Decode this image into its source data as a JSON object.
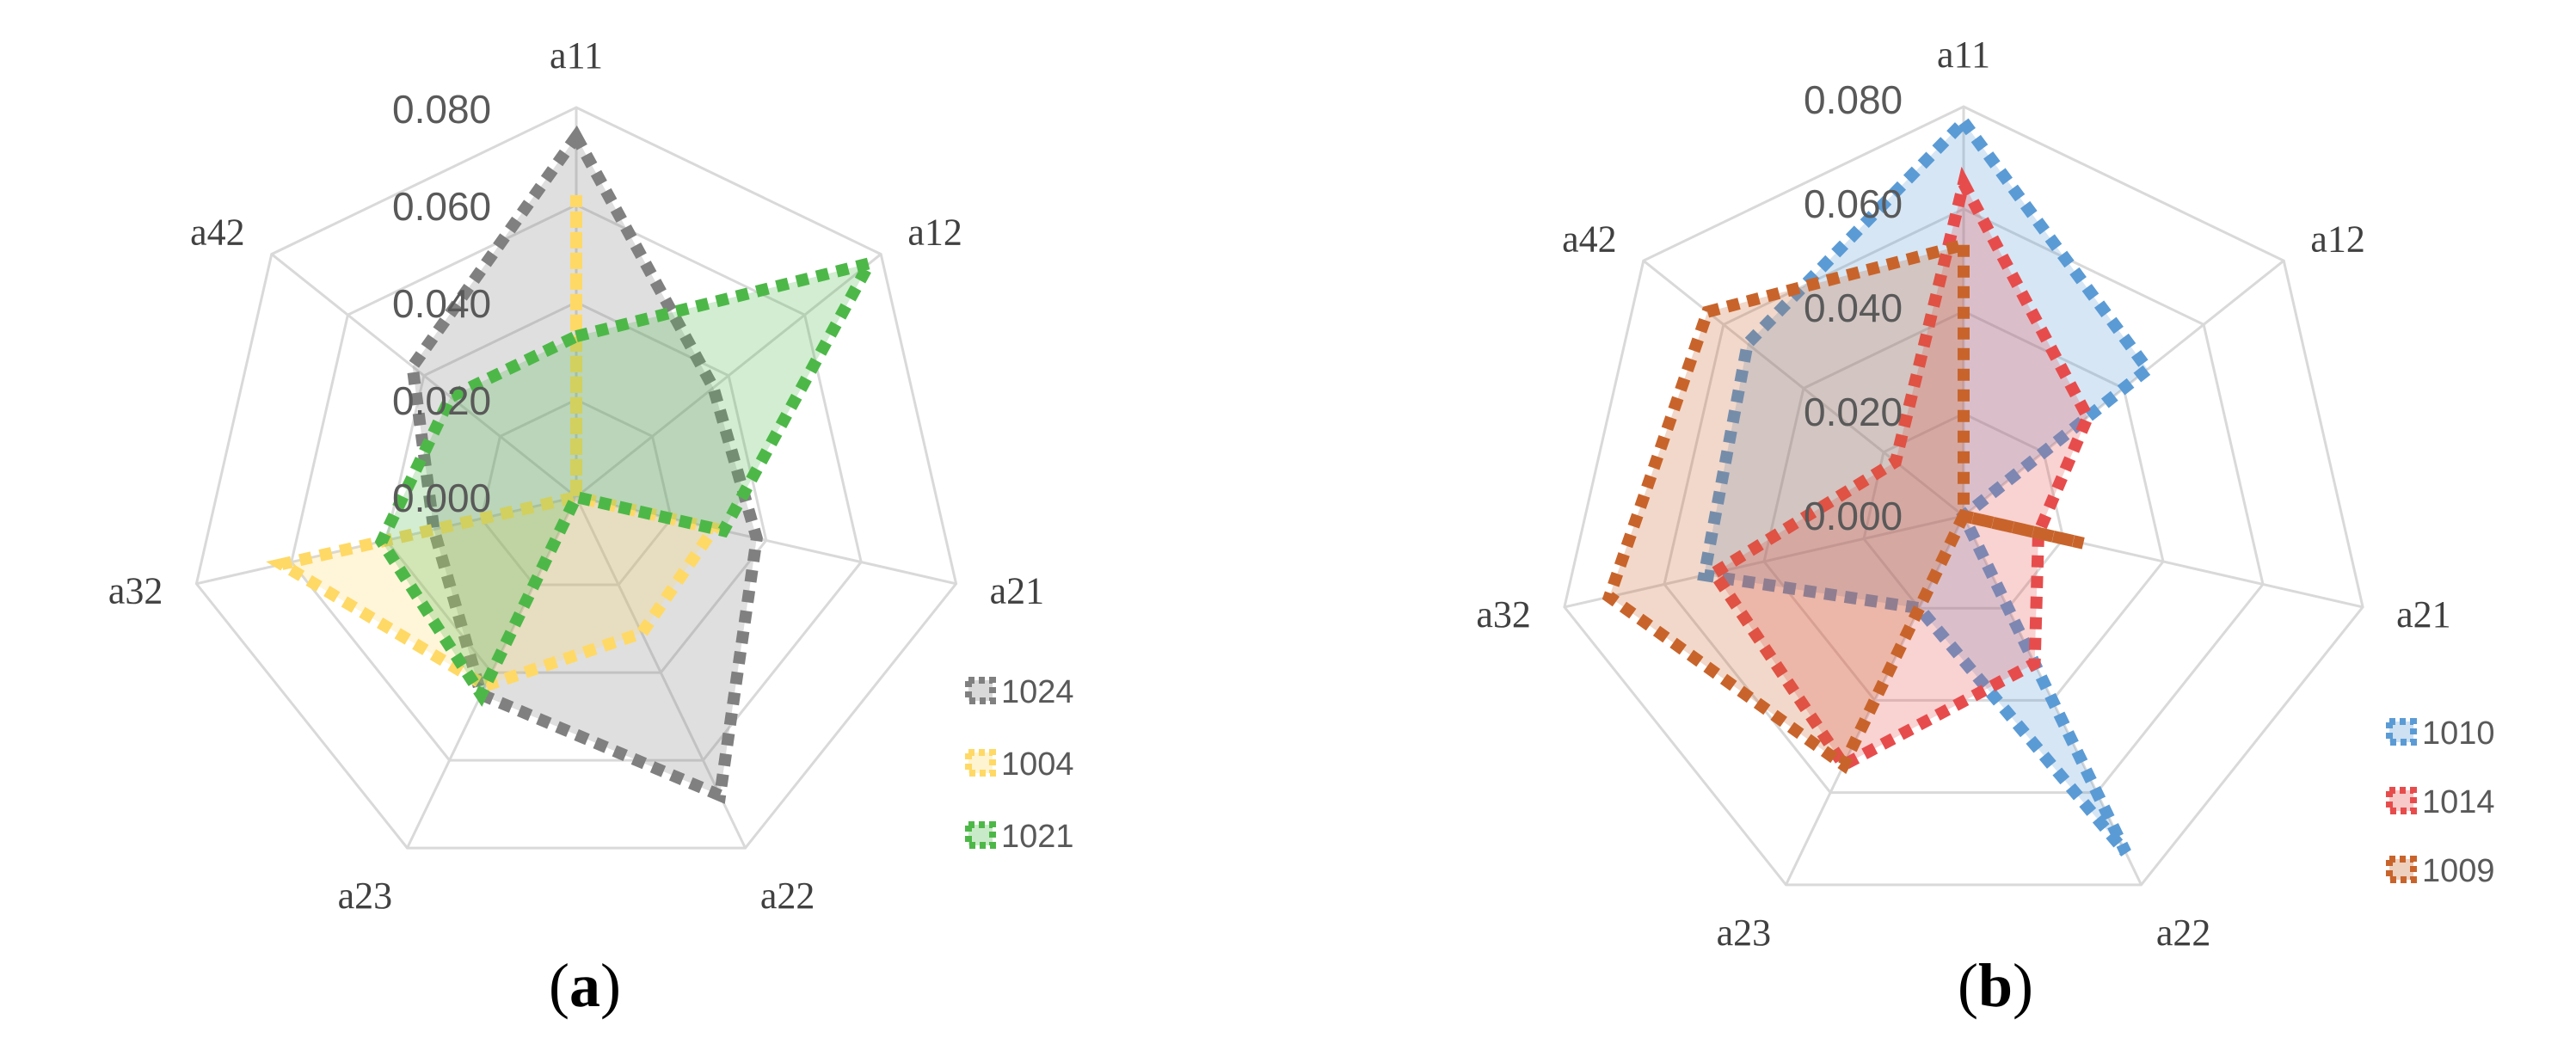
{
  "chart_data": [
    {
      "type": "radar",
      "panel_label": "a",
      "categories": [
        "a11",
        "a12",
        "a21",
        "a22",
        "a23",
        "a32",
        "a42"
      ],
      "tick_labels": [
        "0.000",
        "0.020",
        "0.040",
        "0.060",
        "0.080"
      ],
      "rlim": [
        0.0,
        0.08
      ],
      "grid": true,
      "legend_position": "right",
      "series": [
        {
          "name": "1024",
          "color": "#808080",
          "values": [
            0.074,
            0.036,
            0.038,
            0.068,
            0.045,
            0.03,
            0.043
          ]
        },
        {
          "name": "1004",
          "color": "#ffd966",
          "values": [
            0.062,
            0.0,
            0.029,
            0.031,
            0.043,
            0.062,
            0.0
          ]
        },
        {
          "name": "1021",
          "color": "#4db848",
          "values": [
            0.033,
            0.077,
            0.031,
            0.0,
            0.045,
            0.041,
            0.033
          ]
        }
      ]
    },
    {
      "type": "radar",
      "panel_label": "b",
      "categories": [
        "a11",
        "a12",
        "a21",
        "a22",
        "a23",
        "a32",
        "a42"
      ],
      "tick_labels": [
        "0.000",
        "0.020",
        "0.040",
        "0.060",
        "0.080"
      ],
      "rlim": [
        0.0,
        0.08
      ],
      "grid": true,
      "legend_position": "right",
      "series": [
        {
          "name": "1010",
          "color": "#5b9bd5",
          "values": [
            0.077,
            0.046,
            0.0,
            0.073,
            0.02,
            0.052,
            0.054
          ]
        },
        {
          "name": "1014",
          "color": "#e74c4c",
          "values": [
            0.065,
            0.031,
            0.015,
            0.032,
            0.054,
            0.05,
            0.017
          ]
        },
        {
          "name": "1009",
          "color": "#c8642b",
          "values": [
            0.053,
            0.0,
            0.024,
            0.0,
            0.054,
            0.071,
            0.064
          ]
        }
      ]
    }
  ]
}
